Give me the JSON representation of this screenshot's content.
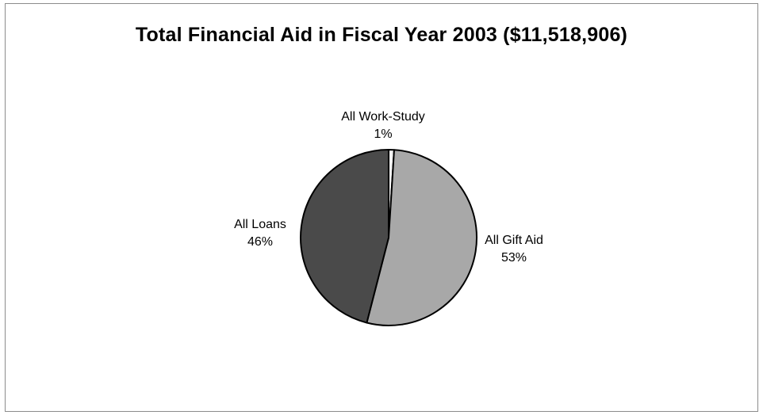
{
  "chart_data": {
    "type": "pie",
    "title": "Total Financial Aid in Fiscal Year 2003 ($11,518,906)",
    "slices": [
      {
        "name": "All Work-Study",
        "percent_label": "1%",
        "value": 1,
        "color": "#f4f4f4"
      },
      {
        "name": "All Gift Aid",
        "percent_label": "53%",
        "value": 53,
        "color": "#a8a8a8"
      },
      {
        "name": "All Loans",
        "percent_label": "46%",
        "value": 46,
        "color": "#4a4a4a"
      }
    ],
    "legend": "none",
    "labels": "outside"
  }
}
